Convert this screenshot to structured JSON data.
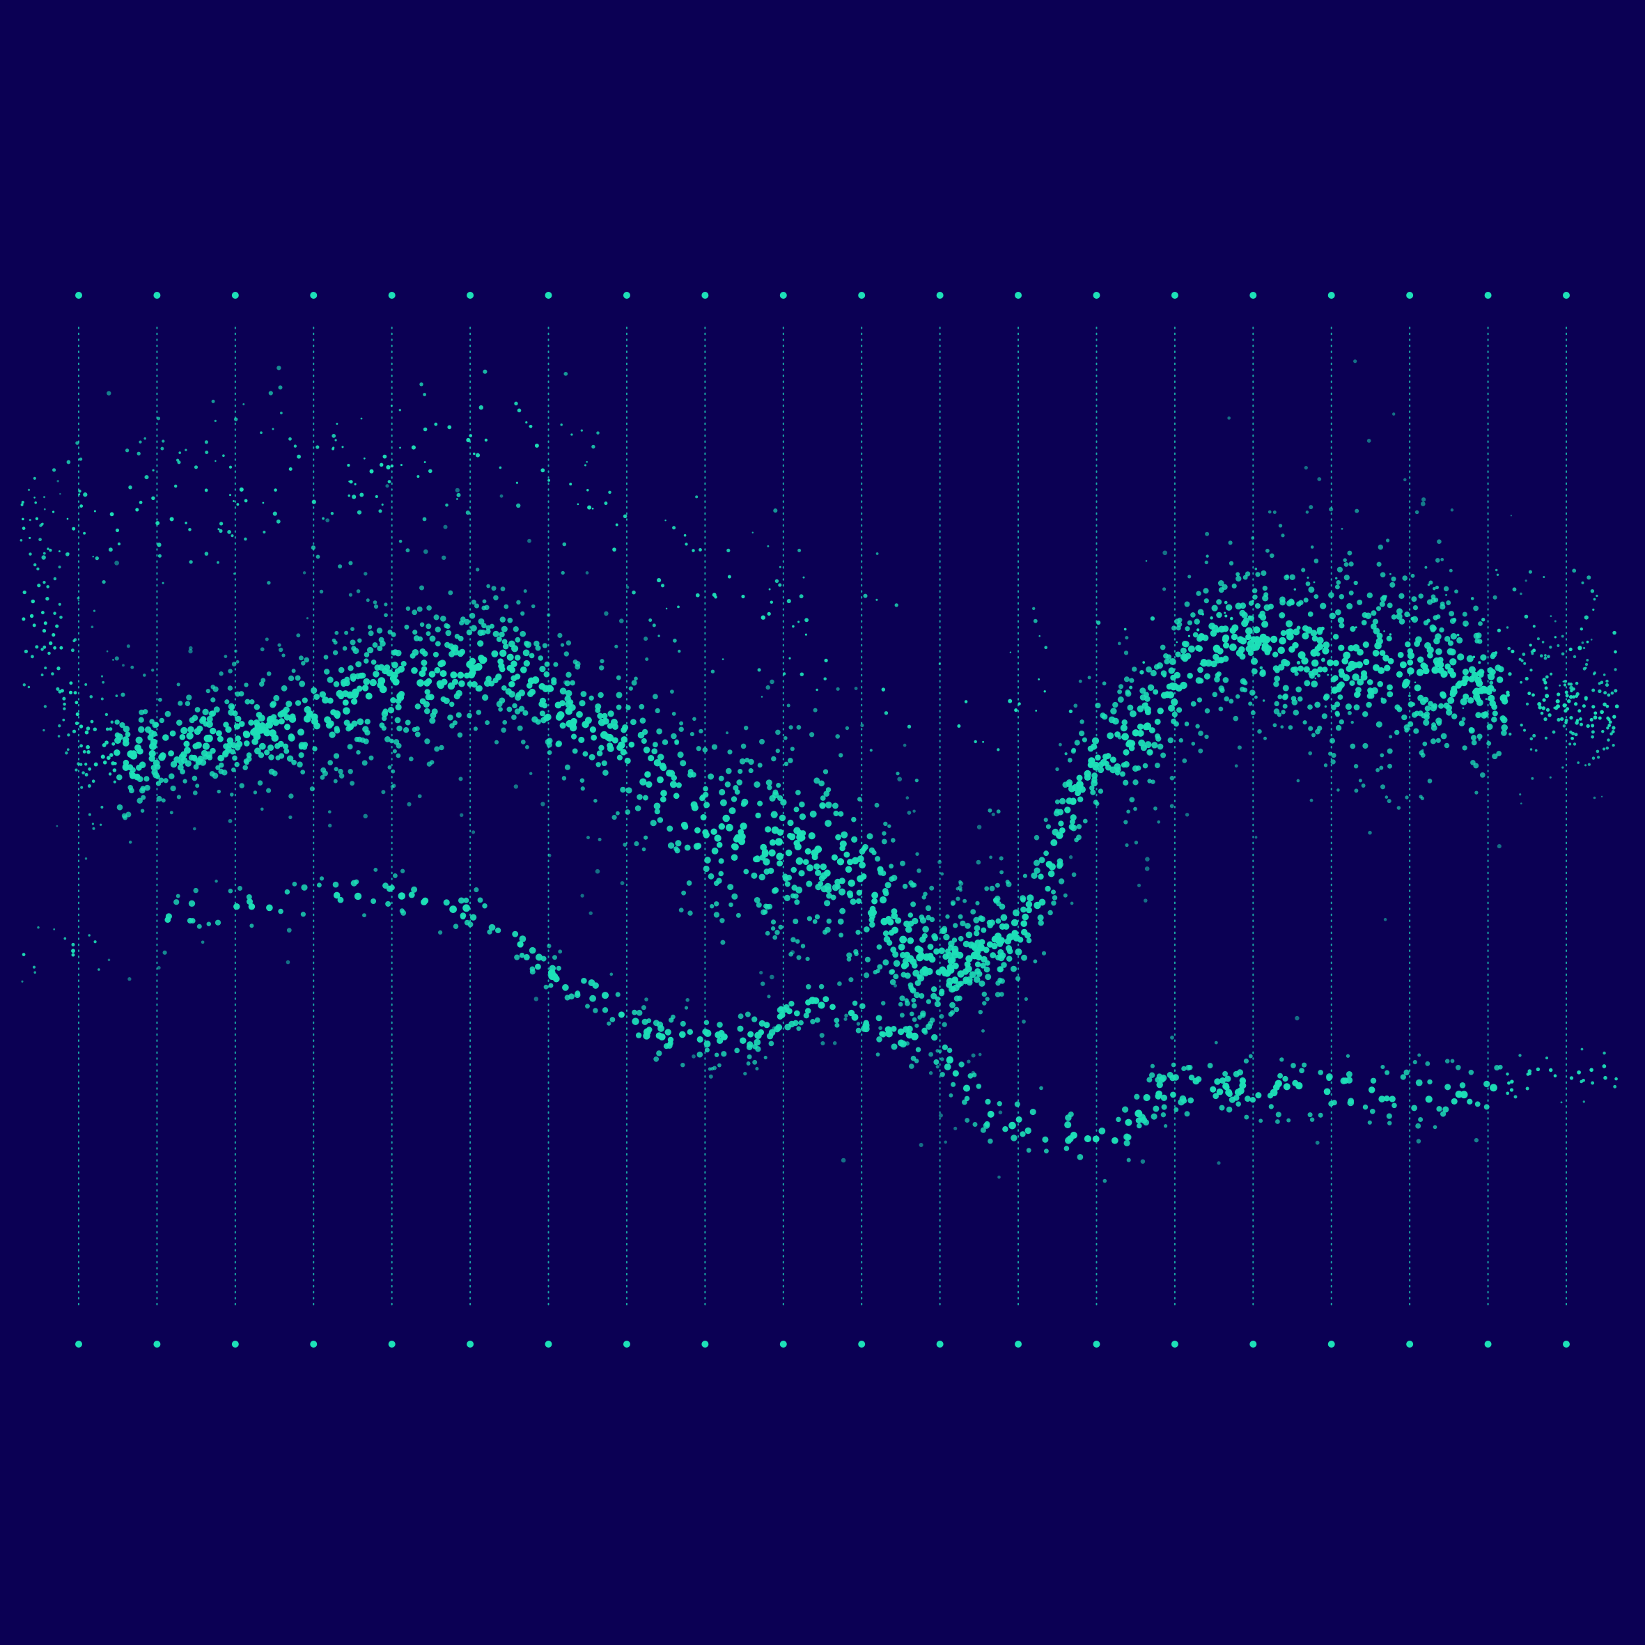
{
  "artwork": {
    "kind": "generative dot-particle wave illustration",
    "colors": {
      "background": "#0b0054",
      "dots": "#1de0b8",
      "guides": "#1cc3b4"
    },
    "guide_columns": 20,
    "bands": [
      {
        "name": "upper-wave",
        "profile": [
          [
            0.01,
            0.36
          ],
          [
            0.05,
            0.53
          ],
          [
            0.15,
            0.5
          ],
          [
            0.25,
            0.44
          ],
          [
            0.3,
            0.42
          ],
          [
            0.36,
            0.5
          ],
          [
            0.44,
            0.62
          ],
          [
            0.5,
            0.64
          ],
          [
            0.58,
            0.78
          ],
          [
            0.62,
            0.74
          ],
          [
            0.68,
            0.52
          ],
          [
            0.76,
            0.39
          ],
          [
            0.85,
            0.42
          ],
          [
            0.95,
            0.46
          ],
          [
            0.99,
            0.48
          ]
        ],
        "spread": [
          [
            0.0,
            0.15
          ],
          [
            0.1,
            0.08
          ],
          [
            0.25,
            0.12
          ],
          [
            0.33,
            0.1
          ],
          [
            0.45,
            0.16
          ],
          [
            0.5,
            0.17
          ],
          [
            0.6,
            0.09
          ],
          [
            0.75,
            0.12
          ],
          [
            0.85,
            0.16
          ],
          [
            1.0,
            0.08
          ]
        ],
        "count": 2600,
        "density_weights": [
          1.2,
          1.3,
          1.4,
          1.6,
          1.2,
          1.0,
          1.5,
          2.2,
          1.2,
          1.4,
          1.7,
          1.5,
          1.2
        ]
      },
      {
        "name": "lower-wave",
        "profile": [
          [
            0.04,
            0.76
          ],
          [
            0.12,
            0.71
          ],
          [
            0.22,
            0.69
          ],
          [
            0.28,
            0.71
          ],
          [
            0.35,
            0.8
          ],
          [
            0.4,
            0.86
          ],
          [
            0.45,
            0.86
          ],
          [
            0.5,
            0.82
          ],
          [
            0.56,
            0.86
          ],
          [
            0.62,
            0.96
          ],
          [
            0.68,
            0.98
          ],
          [
            0.72,
            0.92
          ],
          [
            0.8,
            0.92
          ],
          [
            0.9,
            0.93
          ],
          [
            0.97,
            0.9
          ]
        ],
        "spread": [
          [
            0.0,
            0.03
          ],
          [
            0.3,
            0.03
          ],
          [
            0.5,
            0.04
          ],
          [
            0.65,
            0.05
          ],
          [
            0.8,
            0.05
          ],
          [
            1.0,
            0.04
          ]
        ],
        "count": 520,
        "density_weights": [
          0.4,
          0.6,
          0.8,
          1.0,
          1.3,
          1.2,
          0.9,
          1.2,
          1.1,
          0.8
        ]
      },
      {
        "name": "upper-scatter",
        "profile": [
          [
            0.05,
            0.25
          ],
          [
            0.2,
            0.2
          ],
          [
            0.3,
            0.15
          ],
          [
            0.4,
            0.3
          ],
          [
            0.5,
            0.4
          ],
          [
            0.6,
            0.48
          ],
          [
            0.75,
            0.38
          ],
          [
            0.9,
            0.4
          ]
        ],
        "spread": [
          [
            0.0,
            0.12
          ],
          [
            0.5,
            0.15
          ],
          [
            1.0,
            0.12
          ]
        ],
        "count": 420,
        "density_weights": [
          1.2,
          1.3,
          1.1,
          0.8,
          0.6,
          0.6,
          0.9,
          1.0
        ]
      }
    ]
  }
}
